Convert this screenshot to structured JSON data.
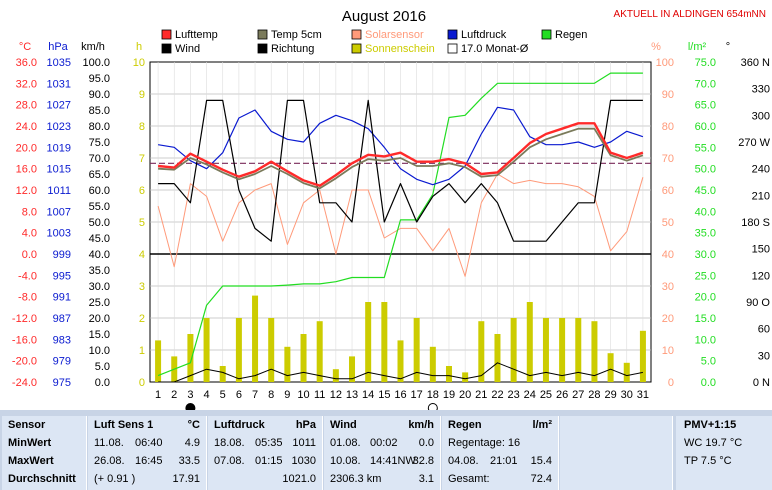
{
  "title": "August 2016",
  "station": "AKTUELL IN ALDINGEN 654mNN",
  "colors": {
    "lufttemp": "#ff2a2a",
    "temp5cm": "#7a7a5a",
    "solarsensor": "#ff9a7a",
    "luftdruck": "#0a1ad0",
    "regen": "#22dd22",
    "wind": "#000000",
    "richtung": "#000000",
    "sonnenschein": "#cccc00",
    "monat": "#7a2a5a",
    "unit_red": "#ff2a2a",
    "unit_blue": "#0a1ad0",
    "unit_black": "#000000",
    "unit_yellow": "#cccc00",
    "unit_salmon": "#ff9a7a",
    "unit_green": "#22dd22"
  },
  "legend": [
    {
      "key": "lufttemp",
      "label": "Lufttemp"
    },
    {
      "key": "temp5cm",
      "label": "Temp 5cm"
    },
    {
      "key": "solarsensor",
      "label": "Solarsensor"
    },
    {
      "key": "luftdruck",
      "label": "Luftdruck"
    },
    {
      "key": "regen",
      "label": "Regen"
    },
    {
      "key": "wind",
      "label": "Wind"
    },
    {
      "key": "richtung",
      "label": "Richtung"
    },
    {
      "key": "sonnenschein",
      "label": "Sonnenschein"
    },
    {
      "key": "monat",
      "label": "17.0 Monat-Ø"
    }
  ],
  "axes": {
    "temp": {
      "unit": "°C",
      "ticks": [
        "36.0",
        "32.0",
        "28.0",
        "24.0",
        "20.0",
        "16.0",
        "12.0",
        "8.0",
        "4.0",
        "0.0",
        "-4.0",
        "-8.0",
        "-12.0",
        "-16.0",
        "-20.0",
        "-24.0"
      ]
    },
    "press": {
      "unit": "hPa",
      "ticks": [
        "1035",
        "1031",
        "1027",
        "1023",
        "1019",
        "1015",
        "1011",
        "1007",
        "1003",
        "999",
        "995",
        "991",
        "987",
        "983",
        "979",
        "975"
      ]
    },
    "wind": {
      "unit": "km/h",
      "ticks": [
        "100.0",
        "95.0",
        "90.0",
        "85.0",
        "80.0",
        "75.0",
        "70.0",
        "65.0",
        "60.0",
        "55.0",
        "50.0",
        "45.0",
        "40.0",
        "35.0",
        "30.0",
        "25.0",
        "20.0",
        "15.0",
        "10.0",
        "5.0",
        "0.0"
      ]
    },
    "sun": {
      "unit": "h",
      "ticks": [
        "10",
        "9",
        "8",
        "7",
        "6",
        "5",
        "4",
        "3",
        "2",
        "1",
        "0"
      ]
    },
    "solar": {
      "unit": "%",
      "ticks": [
        "100",
        "90",
        "80",
        "70",
        "60",
        "50",
        "40",
        "30",
        "20",
        "10",
        "0"
      ]
    },
    "rain": {
      "unit": "l/m²",
      "ticks": [
        "75.0",
        "70.0",
        "65.0",
        "60.0",
        "55.0",
        "50.0",
        "45.0",
        "40.0",
        "35.0",
        "30.0",
        "25.0",
        "20.0",
        "15.0",
        "10.0",
        "5.0",
        "0.0"
      ]
    },
    "dir": {
      "unit": "°",
      "ticks": [
        "360 N",
        "330",
        "300",
        "270 W",
        "240",
        "210",
        "180 S",
        "150",
        "120",
        "90 O",
        "60",
        "30",
        "0  N"
      ]
    },
    "x_ticks": [
      "1",
      "2",
      "3",
      "4",
      "5",
      "6",
      "7",
      "8",
      "9",
      "10",
      "11",
      "12",
      "13",
      "14",
      "15",
      "16",
      "17",
      "18",
      "19",
      "20",
      "21",
      "22",
      "23",
      "24",
      "25",
      "26",
      "27",
      "28",
      "29",
      "30",
      "31"
    ]
  },
  "chart_data": {
    "type": "line",
    "title": "August 2016",
    "x": [
      1,
      2,
      3,
      4,
      5,
      6,
      7,
      8,
      9,
      10,
      11,
      12,
      13,
      14,
      15,
      16,
      17,
      18,
      19,
      20,
      21,
      22,
      23,
      24,
      25,
      26,
      27,
      28,
      29,
      30,
      31
    ],
    "monat_avg_temp": 17.0,
    "frost_line_temp": 0.0,
    "series": [
      {
        "key": "lufttemp",
        "name": "Lufttemp",
        "axis": "temp",
        "values": [
          16.5,
          16.2,
          18.8,
          17.3,
          15.8,
          14.5,
          15.5,
          17.3,
          15.5,
          13.8,
          12.8,
          14.8,
          17.0,
          18.6,
          18.3,
          19.0,
          17.3,
          17.3,
          17.8,
          17.0,
          15.0,
          15.3,
          18.0,
          20.8,
          22.5,
          23.5,
          24.5,
          24.5,
          19.0,
          18.0,
          19.0
        ]
      },
      {
        "key": "temp5cm",
        "name": "Temp 5cm",
        "axis": "temp",
        "values": [
          16.0,
          15.8,
          18.0,
          16.8,
          15.3,
          14.0,
          15.0,
          16.5,
          15.0,
          13.3,
          12.3,
          14.2,
          16.3,
          17.8,
          17.5,
          18.0,
          16.5,
          16.5,
          17.0,
          16.3,
          14.5,
          14.8,
          17.3,
          20.0,
          21.5,
          22.5,
          23.5,
          23.5,
          18.5,
          17.5,
          18.5
        ]
      },
      {
        "key": "solarsensor",
        "name": "Solarsensor",
        "axis": "solar",
        "values": [
          55,
          36,
          62,
          58,
          44,
          56,
          60,
          62,
          43,
          56,
          60,
          40,
          60,
          60,
          45,
          48,
          48,
          41,
          48,
          33,
          56,
          65,
          62,
          63,
          62,
          62,
          61,
          58,
          41,
          47,
          64
        ]
      },
      {
        "key": "luftdruck",
        "name": "Luftdruck",
        "axis": "press",
        "values": [
          1019.5,
          1019.0,
          1016.5,
          1015.0,
          1018.0,
          1024.5,
          1026.0,
          1022.0,
          1020.5,
          1020.0,
          1023.5,
          1025.0,
          1024.0,
          1022.5,
          1019.0,
          1015.0,
          1013.0,
          1012.0,
          1013.0,
          1015.5,
          1021.5,
          1026.5,
          1026.0,
          1021.0,
          1019.5,
          1019.5,
          1020.0,
          1019.0,
          1020.0,
          1022.0,
          1021.0
        ]
      },
      {
        "key": "regen",
        "name": "Regen",
        "axis": "rain",
        "values": [
          1.5,
          3.0,
          4.5,
          18.0,
          22.5,
          22.5,
          22.5,
          22.5,
          22.7,
          23.0,
          23.0,
          23.5,
          24.5,
          24.5,
          24.5,
          38.0,
          38.0,
          44.0,
          62.0,
          62.5,
          66.5,
          70.0,
          70.0,
          70.0,
          70.0,
          70.0,
          70.0,
          70.0,
          72.4,
          72.4,
          72.4
        ]
      },
      {
        "key": "wind",
        "name": "Wind",
        "axis": "wind",
        "values": [
          62,
          62,
          56,
          88,
          88,
          60,
          48,
          44,
          88,
          88,
          56,
          56,
          50,
          88,
          50,
          62,
          50,
          58,
          62,
          56,
          62,
          56,
          44,
          44,
          44,
          50,
          56,
          56,
          88,
          88,
          88
        ]
      },
      {
        "key": "richtung",
        "name": "Richtung",
        "axis": "dir",
        "values": [
          270,
          262,
          230,
          265,
          245,
          225,
          218,
          247,
          248,
          220,
          207,
          207,
          212,
          242,
          220,
          233,
          200,
          217,
          231,
          212,
          232,
          200,
          182,
          198,
          218,
          221,
          236,
          227,
          244,
          236,
          244
        ]
      },
      {
        "key": "sonnenschein",
        "name": "Sonnenschein",
        "axis": "sun",
        "values": [
          1.3,
          0.8,
          1.5,
          2.0,
          0.5,
          2.0,
          2.7,
          2.0,
          1.1,
          1.5,
          1.9,
          0.4,
          0.8,
          2.5,
          2.5,
          1.3,
          2.0,
          1.1,
          0.5,
          0.3,
          1.9,
          1.5,
          2.0,
          2.5,
          2.0,
          2.0,
          2.0,
          1.9,
          0.9,
          0.6,
          1.6
        ]
      },
      {
        "key": "wind_low",
        "name": "Wind",
        "axis": "wind",
        "values": [
          0,
          0,
          2,
          4,
          3,
          1,
          2,
          4,
          2,
          3,
          2,
          1,
          1,
          3,
          2,
          1,
          3,
          2,
          2,
          1,
          2,
          6,
          4,
          2,
          3,
          2,
          3,
          2,
          4,
          2,
          3
        ]
      }
    ],
    "markers": [
      {
        "day": 3,
        "type": "new-moon"
      },
      {
        "day": 18,
        "type": "full-moon"
      }
    ]
  },
  "table": {
    "rows": [
      "Sensor",
      "MinWert",
      "MaxWert",
      "Durchschnitt"
    ],
    "luft": {
      "head": "Luft Sens 1",
      "unit": "°C",
      "min_date": "11.08.",
      "min_time": "06:40",
      "min_val": "4.9",
      "max_date": "26.08.",
      "max_time": "16:45",
      "max_val": "33.5",
      "avg_note": "(+ 0.91 )",
      "avg_val": "17.91"
    },
    "druck": {
      "head": "Luftdruck",
      "unit": "hPa",
      "min_date": "18.08.",
      "min_time": "05:35",
      "min_val": "1011",
      "max_date": "07.08.",
      "max_time": "01:15",
      "max_val": "1030",
      "avg_val": "1021.0"
    },
    "wind": {
      "head": "Wind",
      "unit": "km/h",
      "min_date": "01.08.",
      "min_time": "00:02",
      "min_val": "0.0",
      "max_date": "10.08.",
      "max_time": "14:41NW",
      "max_val": "32.8",
      "avg_note": "2306.3 km",
      "avg_val": "3.1"
    },
    "regen": {
      "head": "Regen",
      "unit": "l/m²",
      "min_label": "Regentage: 16",
      "max_date": "04.08.",
      "max_time": "21:01",
      "max_val": "15.4",
      "avg_label": "Gesamt:",
      "avg_val": "72.4"
    },
    "pmv": {
      "head": "PMV+1:15",
      "wc": "WC 19.7 °C",
      "tp": "TP 7.5 °C"
    }
  }
}
